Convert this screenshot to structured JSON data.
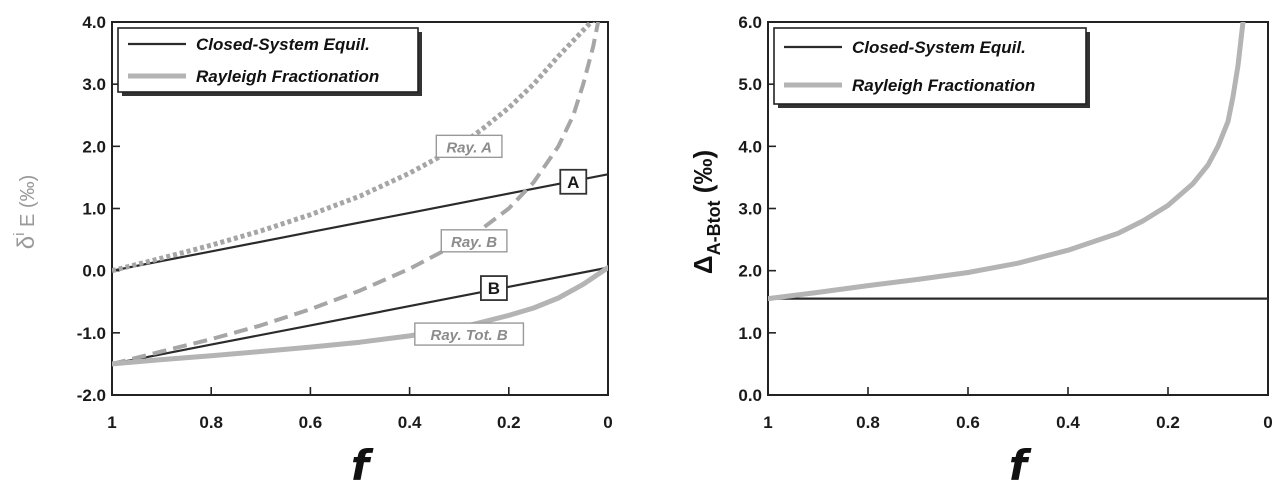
{
  "chart_data": [
    {
      "type": "line",
      "xlabel": "f",
      "ylabel": "δ<sup>i</sup> E (‰)",
      "ylabel_parts": {
        "main": "δ",
        "sup": "i",
        "rest": " E  (‰)"
      },
      "xlim": [
        1,
        0
      ],
      "ylim": [
        -2.0,
        4.0
      ],
      "x_ticks": [
        "1",
        "0.8",
        "0.6",
        "0.4",
        "0.2",
        "0"
      ],
      "y_ticks": [
        "-2.0",
        "-1.0",
        "0.0",
        "1.0",
        "2.0",
        "3.0",
        "4.0"
      ],
      "legend": {
        "position": "top-left",
        "entries": [
          {
            "label": "Closed-System Equil.",
            "style": "solid-dark"
          },
          {
            "label": "Rayleigh Fractionation",
            "style": "thick-gray"
          }
        ]
      },
      "series": [
        {
          "name": "A",
          "style": "solid-dark",
          "x": [
            1,
            0.8,
            0.6,
            0.4,
            0.2,
            0
          ],
          "y": [
            0.0,
            0.31,
            0.62,
            0.93,
            1.24,
            1.55
          ]
        },
        {
          "name": "B",
          "style": "solid-dark",
          "x": [
            1,
            0.8,
            0.6,
            0.4,
            0.2,
            0
          ],
          "y": [
            -1.5,
            -1.19,
            -0.88,
            -0.57,
            -0.26,
            0.05
          ]
        },
        {
          "name": "Ray. A",
          "style": "dotted-gray",
          "x": [
            1,
            0.9,
            0.8,
            0.7,
            0.6,
            0.5,
            0.4,
            0.3,
            0.25,
            0.2,
            0.15,
            0.1,
            0.07,
            0.04,
            0.02
          ],
          "y": [
            0.0,
            0.2,
            0.41,
            0.64,
            0.9,
            1.2,
            1.57,
            2.0,
            2.3,
            2.62,
            3.0,
            3.45,
            3.7,
            3.95,
            4.1
          ]
        },
        {
          "name": "Ray. B",
          "style": "dashed-gray",
          "x": [
            1,
            0.9,
            0.8,
            0.7,
            0.6,
            0.5,
            0.4,
            0.3,
            0.25,
            0.2,
            0.15,
            0.1,
            0.07,
            0.05,
            0.03,
            0.02
          ],
          "y": [
            -1.5,
            -1.3,
            -1.1,
            -0.88,
            -0.62,
            -0.32,
            0.03,
            0.45,
            0.7,
            1.0,
            1.42,
            2.0,
            2.5,
            3.0,
            3.6,
            4.0
          ]
        },
        {
          "name": "Ray. Tot. B",
          "style": "thick-gray",
          "x": [
            1,
            0.9,
            0.8,
            0.7,
            0.6,
            0.5,
            0.4,
            0.3,
            0.2,
            0.15,
            0.1,
            0.05,
            0.0
          ],
          "y": [
            -1.5,
            -1.43,
            -1.37,
            -1.3,
            -1.23,
            -1.15,
            -1.05,
            -0.92,
            -0.72,
            -0.6,
            -0.44,
            -0.22,
            0.05
          ]
        }
      ],
      "annotations": [
        {
          "text": "Ray. A",
          "x": 0.28,
          "y": 2.0,
          "kind": "italic-box"
        },
        {
          "text": "Ray. B",
          "x": 0.27,
          "y": 0.48,
          "kind": "italic-box"
        },
        {
          "text": "Ray. Tot. B",
          "x": 0.28,
          "y": -1.02,
          "kind": "italic-box"
        },
        {
          "text": "A",
          "x": 0.07,
          "y": 1.43,
          "kind": "bold-box"
        },
        {
          "text": "B",
          "x": 0.23,
          "y": -0.28,
          "kind": "bold-box"
        }
      ]
    },
    {
      "type": "line",
      "xlabel": "f",
      "ylabel_parts": {
        "main": "Δ",
        "sub": "A-Btot",
        "rest": " (‰)"
      },
      "xlim": [
        1,
        0
      ],
      "ylim": [
        0.0,
        6.0
      ],
      "x_ticks": [
        "1",
        "0.8",
        "0.6",
        "0.4",
        "0.2",
        "0"
      ],
      "y_ticks": [
        "0.0",
        "1.0",
        "2.0",
        "3.0",
        "4.0",
        "5.0",
        "6.0"
      ],
      "legend": {
        "position": "top-left",
        "entries": [
          {
            "label": "Closed-System Equil.",
            "style": "solid-dark"
          },
          {
            "label": "Rayleigh Fractionation",
            "style": "thick-gray"
          }
        ]
      },
      "series": [
        {
          "name": "Closed-System Equil.",
          "style": "solid-dark",
          "x": [
            1,
            0
          ],
          "y": [
            1.55,
            1.55
          ]
        },
        {
          "name": "Rayleigh Fractionation",
          "style": "thick-gray",
          "x": [
            1,
            0.9,
            0.8,
            0.7,
            0.6,
            0.5,
            0.4,
            0.3,
            0.25,
            0.2,
            0.15,
            0.12,
            0.1,
            0.08,
            0.07,
            0.06,
            0.05
          ],
          "y": [
            1.55,
            1.65,
            1.76,
            1.86,
            1.97,
            2.12,
            2.33,
            2.6,
            2.8,
            3.05,
            3.4,
            3.7,
            4.0,
            4.4,
            4.8,
            5.3,
            6.0
          ]
        }
      ]
    }
  ]
}
